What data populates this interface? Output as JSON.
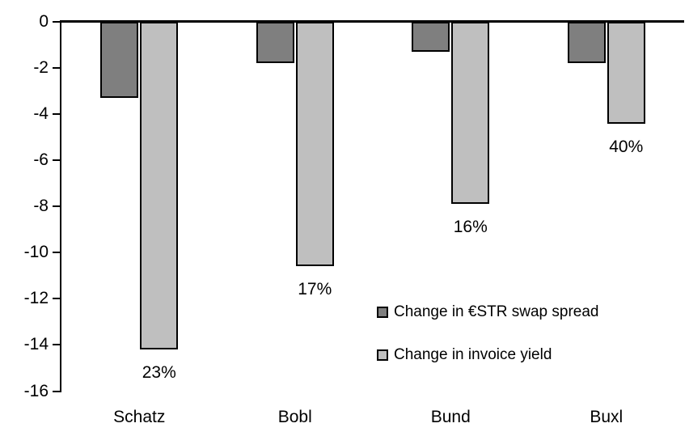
{
  "chart_data": {
    "type": "bar",
    "title": "",
    "xlabel": "",
    "ylabel": "",
    "categories": [
      "Schatz",
      "Bobl",
      "Bund",
      "Buxl"
    ],
    "series": [
      {
        "name": "Change in €STR swap spread",
        "color": "#7f7f7f",
        "values": [
          -3.3,
          -1.8,
          -1.3,
          -1.8
        ]
      },
      {
        "name": "Change in invoice yield",
        "color": "#bfbfbf",
        "values": [
          -14.2,
          -10.6,
          -7.9,
          -4.4
        ]
      }
    ],
    "bar_labels": {
      "series_name": "Change in invoice yield",
      "values": [
        "23%",
        "17%",
        "16%",
        "40%"
      ]
    },
    "y_axis": {
      "ticks": [
        0,
        -2,
        -4,
        -6,
        -8,
        -10,
        -12,
        -14,
        -16
      ],
      "range": [
        -16,
        0
      ]
    },
    "grid": false,
    "legend_position": "inside-right",
    "colors": {
      "axis": "#000000",
      "bar_outline": "#000000",
      "background": "#ffffff",
      "text": "#000000"
    }
  }
}
